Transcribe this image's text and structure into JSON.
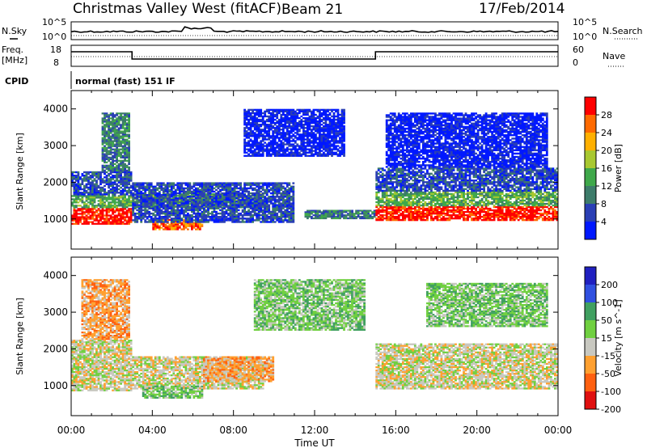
{
  "header": {
    "station": "Christmas Valley West (fitACF)",
    "beam": "Beam 21",
    "date": "17/Feb/2014"
  },
  "summary_panels": {
    "nsky_label": "N.Sky",
    "nsky_ticks": [
      "10^5",
      "10^0"
    ],
    "nsearch_label": "N.Search",
    "nsearch_ticks": [
      "10^5",
      "10^0"
    ],
    "freq_label": "Freq.",
    "freq_unit": "[MHz]",
    "freq_ticks": [
      "18",
      "8"
    ],
    "nave_label": "Nave",
    "nave_ticks": [
      "60",
      "0"
    ],
    "cpid_label": "CPID",
    "cpid_text": "normal (fast) 151 IF"
  },
  "chart_data": [
    {
      "type": "heatmap",
      "name": "power",
      "ylabel": "Slant Range [km]",
      "xlabel": "Time UT",
      "xlim": [
        0,
        24
      ],
      "ylim": [
        180,
        4500
      ],
      "xticks": [
        "00:00",
        "04:00",
        "08:00",
        "12:00",
        "16:00",
        "20:00",
        "00:00"
      ],
      "yticks": [
        1000,
        2000,
        3000,
        4000
      ],
      "colorbar": {
        "label": "Power [dB]",
        "ticks": [
          "4",
          "8",
          "12",
          "16",
          "20",
          "24",
          "28"
        ],
        "colors": [
          "#0018ff",
          "#2a3fb5",
          "#3d7c6a",
          "#3fa84a",
          "#a8c830",
          "#ffb000",
          "#ff6a00",
          "#ff0000"
        ]
      },
      "regions": [
        {
          "t0": 0.0,
          "t1": 3.0,
          "r0": 850,
          "r1": 1300,
          "level": 7
        },
        {
          "t0": 0.0,
          "t1": 3.0,
          "r0": 1300,
          "r1": 1650,
          "level": 3
        },
        {
          "t0": 0.0,
          "t1": 3.0,
          "r0": 1650,
          "r1": 2300,
          "level": 1
        },
        {
          "t0": 1.5,
          "t1": 2.9,
          "r0": 2300,
          "r1": 3900,
          "level": 2
        },
        {
          "t0": 3.0,
          "t1": 9.5,
          "r0": 1300,
          "r1": 1700,
          "level": 3
        },
        {
          "t0": 4.0,
          "t1": 6.5,
          "r0": 700,
          "r1": 1000,
          "level": 6
        },
        {
          "t0": 3.0,
          "t1": 11.0,
          "r0": 900,
          "r1": 2000,
          "level": 1
        },
        {
          "t0": 8.5,
          "t1": 13.5,
          "r0": 2700,
          "r1": 4000,
          "level": 0
        },
        {
          "t0": 11.5,
          "t1": 15.0,
          "r0": 1000,
          "r1": 1250,
          "level": 2
        },
        {
          "t0": 15.0,
          "t1": 24.0,
          "r0": 950,
          "r1": 1350,
          "level": 7
        },
        {
          "t0": 15.0,
          "t1": 24.0,
          "r0": 1350,
          "r1": 1750,
          "level": 3
        },
        {
          "t0": 15.0,
          "t1": 24.0,
          "r0": 1750,
          "r1": 2400,
          "level": 1
        },
        {
          "t0": 15.5,
          "t1": 23.5,
          "r0": 2400,
          "r1": 3900,
          "level": 0
        }
      ]
    },
    {
      "type": "heatmap",
      "name": "velocity",
      "ylabel": "Slant Range [km]",
      "xlabel": "Time UT",
      "xlim": [
        0,
        24
      ],
      "ylim": [
        180,
        4500
      ],
      "xticks": [
        "00:00",
        "04:00",
        "08:00",
        "12:00",
        "16:00",
        "20:00",
        "00:00"
      ],
      "yticks": [
        1000,
        2000,
        3000,
        4000
      ],
      "colorbar": {
        "label": "Velocity [m s^-1]",
        "ticks": [
          "200",
          "100",
          "50",
          "15",
          "-15",
          "-50",
          "-100",
          "-200"
        ],
        "colors": [
          "#2020c0",
          "#3050e0",
          "#40a060",
          "#70d040",
          "#c8c8c0",
          "#ffa030",
          "#ff6010",
          "#e01010"
        ]
      },
      "regions": [
        {
          "t0": 0.0,
          "t1": 3.0,
          "r0": 850,
          "r1": 2250,
          "level": 4
        },
        {
          "t0": 0.5,
          "t1": 2.9,
          "r0": 2250,
          "r1": 3900,
          "level": 5
        },
        {
          "t0": 3.0,
          "t1": 9.5,
          "r0": 900,
          "r1": 1800,
          "level": 4
        },
        {
          "t0": 3.5,
          "t1": 6.5,
          "r0": 650,
          "r1": 1000,
          "level": 3
        },
        {
          "t0": 6.5,
          "t1": 10.0,
          "r0": 1100,
          "r1": 1800,
          "level": 5
        },
        {
          "t0": 9.0,
          "t1": 14.5,
          "r0": 2500,
          "r1": 3900,
          "level": 3
        },
        {
          "t0": 15.0,
          "t1": 24.0,
          "r0": 900,
          "r1": 2150,
          "level": 4
        },
        {
          "t0": 17.5,
          "t1": 23.5,
          "r0": 2600,
          "r1": 3800,
          "level": 3
        }
      ]
    }
  ]
}
